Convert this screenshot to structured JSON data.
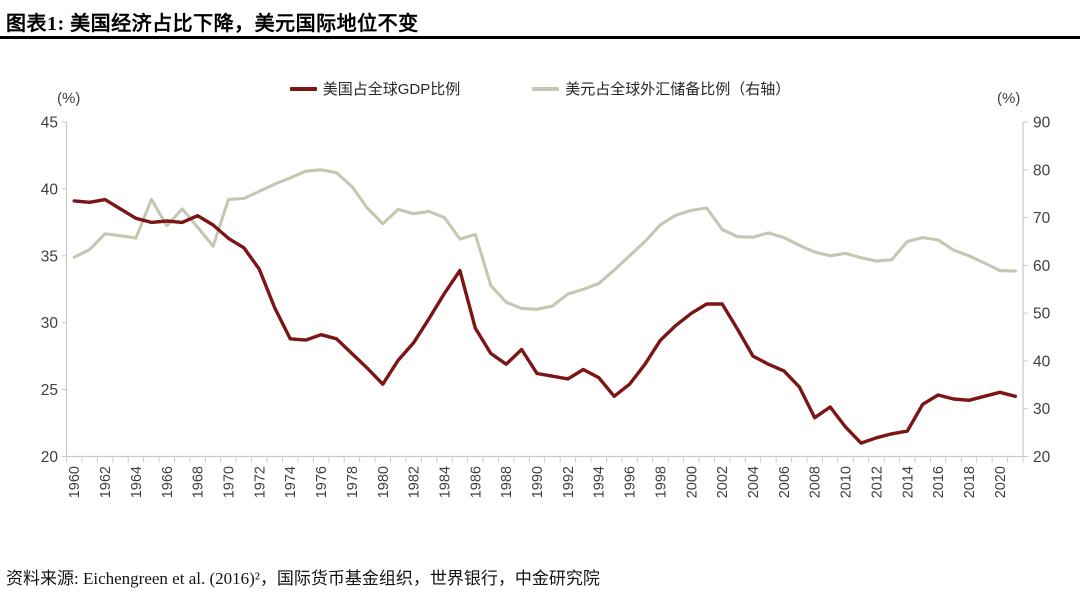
{
  "title": "图表1: 美国经济占比下降，美元国际地位不变",
  "source": "资料来源: Eichengreen et al. (2016)²，国际货币基金组织，世界银行，中金研究院",
  "legend": [
    {
      "label": "美国占全球GDP比例",
      "color": "#7B1516"
    },
    {
      "label": "美元占全球外汇储备比例（右轴）",
      "color": "#C6C7B2"
    }
  ],
  "left_axis": {
    "unit": "(%)",
    "min": 20,
    "max": 45,
    "ticks": [
      45,
      40,
      35,
      30,
      25,
      20
    ]
  },
  "right_axis": {
    "unit": "(%)",
    "min": 20,
    "max": 90,
    "ticks": [
      90,
      80,
      70,
      60,
      50,
      40,
      30,
      20
    ]
  },
  "colors": {
    "axis_line": "#c9c9c9",
    "tick_label": "#3f3f3f"
  },
  "chart_data": {
    "type": "line",
    "title": "图表1: 美国经济占比下降，美元国际地位不变",
    "xlabel": "",
    "ylabel_left": "(%)",
    "ylabel_right": "(%)",
    "grid": false,
    "legend_position": "top",
    "left_ylim": [
      20,
      45
    ],
    "right_ylim": [
      20,
      90
    ],
    "x": [
      1960,
      1961,
      1962,
      1963,
      1964,
      1965,
      1966,
      1967,
      1968,
      1969,
      1970,
      1971,
      1972,
      1973,
      1974,
      1975,
      1976,
      1977,
      1978,
      1979,
      1980,
      1981,
      1982,
      1983,
      1984,
      1985,
      1986,
      1987,
      1988,
      1989,
      1990,
      1991,
      1992,
      1993,
      1994,
      1995,
      1996,
      1997,
      1998,
      1999,
      2000,
      2001,
      2002,
      2003,
      2004,
      2005,
      2006,
      2007,
      2008,
      2009,
      2010,
      2011,
      2012,
      2013,
      2014,
      2015,
      2016,
      2017,
      2018,
      2019,
      2020,
      2021
    ],
    "x_tick_labels": [
      "1960",
      "1962",
      "1964",
      "1966",
      "1968",
      "1970",
      "1972",
      "1974",
      "1976",
      "1978",
      "1980",
      "1982",
      "1984",
      "1986",
      "1988",
      "1990",
      "1992",
      "1994",
      "1996",
      "1998",
      "2000",
      "2002",
      "2004",
      "2006",
      "2008",
      "2010",
      "2012",
      "2014",
      "2016",
      "2018",
      "2020"
    ],
    "series": [
      {
        "name": "美国占全球GDP比例",
        "axis": "left",
        "color": "#7B1516",
        "values": [
          39.1,
          39.0,
          39.2,
          38.5,
          37.8,
          37.5,
          37.6,
          37.5,
          38.0,
          37.3,
          36.3,
          35.6,
          34.0,
          31.1,
          28.8,
          28.7,
          29.1,
          28.8,
          27.7,
          26.6,
          25.4,
          27.2,
          28.5,
          30.3,
          32.2,
          33.9,
          29.6,
          27.7,
          26.9,
          28.0,
          26.2,
          26.0,
          25.8,
          26.5,
          25.9,
          24.5,
          25.4,
          26.9,
          28.7,
          29.8,
          30.7,
          31.4,
          31.4,
          29.5,
          27.5,
          26.9,
          26.4,
          25.2,
          22.9,
          23.7,
          22.2,
          21.0,
          21.4,
          21.7,
          21.9,
          23.9,
          24.6,
          24.3,
          24.2,
          24.5,
          24.8,
          24.5
        ]
      },
      {
        "name": "美元占全球外汇储备比例（右轴）",
        "axis": "right",
        "color": "#C6C7B2",
        "values": [
          61.7,
          63.3,
          66.6,
          66.2,
          65.7,
          73.8,
          68.3,
          71.8,
          68.0,
          64.0,
          73.8,
          74.0,
          75.5,
          77.0,
          78.3,
          79.7,
          80.0,
          79.4,
          76.5,
          72.0,
          68.7,
          71.7,
          70.8,
          71.3,
          70.0,
          65.5,
          66.5,
          55.8,
          52.3,
          51.0,
          50.8,
          51.5,
          54.0,
          55.0,
          56.2,
          59.0,
          62.0,
          65.0,
          68.5,
          70.5,
          71.5,
          72.0,
          67.5,
          66.0,
          65.9,
          66.8,
          65.8,
          64.2,
          62.8,
          62.0,
          62.5,
          61.6,
          60.9,
          61.2,
          65.0,
          65.8,
          65.3,
          63.2,
          62.0,
          60.5,
          58.9,
          58.8
        ]
      }
    ]
  }
}
